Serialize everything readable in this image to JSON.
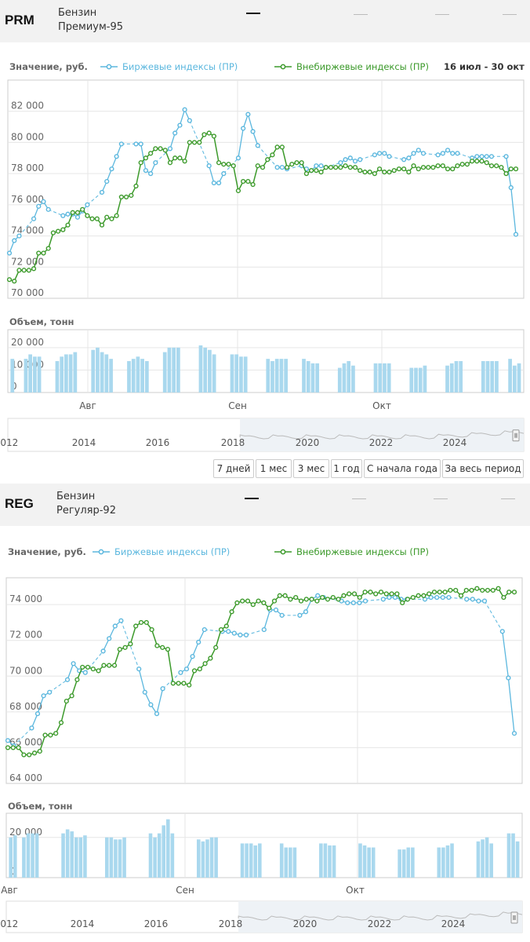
{
  "products": [
    {
      "code": "PRM",
      "name_line1": "Бензин",
      "name_line2": "Премиум-95",
      "value_title": "Значение, руб.",
      "legend_exchange": "Биржевые индексы (ПР)",
      "legend_otc": "Внебиржевые индексы (ПР)",
      "date_range": "16 июл - 30 окт",
      "volume_title": "Объем, тонн"
    },
    {
      "code": "REG",
      "name_line1": "Бензин",
      "name_line2": "Регуляр-92",
      "value_title": "Значение, руб.",
      "legend_exchange": "Биржевые индексы (ПР)",
      "legend_otc": "Внебиржевые индексы (ПР)",
      "volume_title": "Объем, тонн"
    }
  ],
  "range_buttons": [
    "7 дней",
    "1 мес",
    "3 мес",
    "1 год",
    "С начала года",
    "За весь период"
  ],
  "colors": {
    "exchange": "#5bb7de",
    "otc": "#3c9a2b",
    "volume": "#a9d8ee",
    "header_bg": "#f2f2f2"
  },
  "chart_data": [
    {
      "type": "line",
      "title": "Значение, руб.",
      "date_range": "16 июл - 30 окт",
      "ylim": [
        70000,
        84000
      ],
      "yticks": [
        "70 000",
        "72 000",
        "74 000",
        "76 000",
        "78 000",
        "80 000",
        "82 000"
      ],
      "xticks": [
        "Авг",
        "Сен",
        "Окт"
      ],
      "series": [
        {
          "name": "Биржевые индексы (ПР)",
          "values": [
            72900,
            73700,
            74000,
            null,
            null,
            75100,
            75900,
            76200,
            75700,
            null,
            null,
            75300,
            75400,
            75400,
            75200,
            75600,
            76000,
            null,
            null,
            76800,
            77500,
            78300,
            79100,
            79900,
            null,
            null,
            79900,
            79900,
            78200,
            78000,
            78700,
            null,
            null,
            79600,
            80600,
            81100,
            82100,
            81400,
            null,
            null,
            null,
            78500,
            77400,
            77400,
            78000,
            null,
            null,
            79000,
            80900,
            81800,
            80700,
            79800,
            null,
            null,
            null,
            78400,
            78400,
            78300,
            null,
            null,
            78500,
            78300,
            78200,
            78500,
            78500,
            78400,
            null,
            null,
            78700,
            78900,
            79000,
            78800,
            78900,
            null,
            null,
            79200,
            79300,
            79300,
            79100,
            null,
            null,
            78900,
            79000,
            79300,
            79500,
            79300,
            null,
            null,
            79200,
            79300,
            79500,
            79300,
            79300,
            null,
            null,
            79000,
            79100,
            79100,
            79100,
            79100,
            null,
            null,
            79100,
            77100,
            74100
          ]
        },
        {
          "name": "Внебиржевые индексы (ПР)",
          "values": [
            71200,
            71100,
            71800,
            71800,
            71800,
            71900,
            72900,
            72900,
            73200,
            74200,
            74300,
            74400,
            74700,
            75500,
            75500,
            75700,
            75300,
            75100,
            75100,
            74700,
            75200,
            75100,
            75300,
            76500,
            76500,
            76600,
            77200,
            78700,
            79000,
            79300,
            79600,
            79600,
            79500,
            78700,
            79000,
            79000,
            78800,
            80000,
            80000,
            80000,
            80500,
            80600,
            80400,
            78700,
            78600,
            78600,
            78500,
            76900,
            77500,
            77500,
            77300,
            78500,
            78400,
            78900,
            79200,
            79700,
            79700,
            78400,
            78600,
            78700,
            78700,
            78000,
            78200,
            78200,
            78100,
            78400,
            78400,
            78400,
            78400,
            78500,
            78400,
            78400,
            78200,
            78100,
            78100,
            78000,
            78300,
            78100,
            78100,
            78200,
            78300,
            78300,
            78100,
            78500,
            78300,
            78400,
            78400,
            78400,
            78500,
            78500,
            78300,
            78300,
            78500,
            78600,
            78600,
            78800,
            78800,
            78800,
            78700,
            78500,
            78500,
            78400,
            78000,
            78300,
            78300
          ]
        }
      ],
      "volume": {
        "title": "Объем, тонн",
        "ylim": [
          0,
          28000
        ],
        "yticks": [
          "0",
          "10 000",
          "20 000"
        ],
        "values": [
          15000,
          null,
          null,
          15000,
          17000,
          16000,
          16000,
          null,
          null,
          null,
          14000,
          16000,
          17000,
          17000,
          18000,
          null,
          null,
          null,
          19000,
          20000,
          18000,
          17000,
          15000,
          null,
          null,
          null,
          14000,
          15000,
          16000,
          15000,
          14000,
          null,
          null,
          null,
          18000,
          20000,
          20000,
          20000,
          null,
          null,
          null,
          null,
          21000,
          20000,
          19000,
          17000,
          null,
          null,
          null,
          17000,
          17000,
          16000,
          16000,
          null,
          null,
          null,
          null,
          15000,
          14000,
          15000,
          15000,
          15000,
          null,
          null,
          null,
          15000,
          14000,
          13000,
          13000,
          null,
          null,
          null,
          null,
          11000,
          13000,
          14000,
          12000,
          null,
          null,
          null,
          null,
          13000,
          13000,
          13000,
          13000,
          null,
          null,
          null,
          null,
          11000,
          11000,
          11000,
          12000,
          null,
          null,
          null,
          null,
          12000,
          13000,
          14000,
          14000,
          null,
          null,
          null,
          null,
          14000,
          14000,
          14000,
          14000,
          null,
          null,
          15000,
          12000,
          13000
        ]
      },
      "navigator": [
        "2012",
        "2014",
        "2016",
        "2018",
        "2020",
        "2022",
        "2024"
      ]
    },
    {
      "type": "line",
      "title": "Значение, руб.",
      "ylim": [
        64000,
        75500
      ],
      "yticks": [
        "64 000",
        "66 000",
        "68 000",
        "70 000",
        "72 000",
        "74 000"
      ],
      "xticks": [
        "Авг",
        "Сен",
        "Окт"
      ],
      "series": [
        {
          "name": "Биржевые индексы (ПР)",
          "values": [
            66400,
            66100,
            null,
            null,
            67100,
            67900,
            68900,
            69100,
            null,
            null,
            69800,
            70700,
            70300,
            70200,
            null,
            null,
            71400,
            72100,
            72800,
            73100,
            null,
            null,
            70400,
            69100,
            68400,
            67900,
            69300,
            null,
            null,
            70200,
            70400,
            71100,
            71900,
            72600,
            null,
            null,
            72500,
            72500,
            72400,
            72300,
            72300,
            null,
            null,
            72600,
            73700,
            73700,
            73400,
            null,
            null,
            73400,
            73600,
            74300,
            74500,
            74400,
            null,
            null,
            74200,
            74100,
            74100,
            74100,
            74200,
            null,
            null,
            74300,
            74400,
            74400,
            74300,
            74300,
            null,
            null,
            74300,
            74400,
            74400,
            74400,
            74400,
            null,
            null,
            74300,
            74300,
            74200,
            74200,
            null,
            null,
            72500,
            69900,
            66800
          ]
        },
        {
          "name": "Внебиржевые индексы (ПР)",
          "values": [
            66000,
            66000,
            66000,
            65600,
            65600,
            65700,
            65800,
            66700,
            66700,
            66800,
            67400,
            68600,
            68900,
            69800,
            70500,
            70500,
            70400,
            70300,
            70600,
            70600,
            70600,
            71500,
            71600,
            71800,
            72800,
            73000,
            73000,
            72600,
            71700,
            71600,
            71500,
            69600,
            69600,
            69600,
            69500,
            70300,
            70400,
            70700,
            71000,
            71600,
            72600,
            72800,
            73600,
            74100,
            74200,
            74200,
            74000,
            74200,
            74100,
            73800,
            74200,
            74500,
            74500,
            74300,
            74400,
            74200,
            74300,
            74300,
            74200,
            74400,
            74300,
            74400,
            74300,
            74500,
            74600,
            74600,
            74400,
            74700,
            74700,
            74600,
            74700,
            74600,
            74600,
            74600,
            74100,
            74300,
            74400,
            74500,
            74500,
            74600,
            74700,
            74700,
            74700,
            74800,
            74800,
            74500,
            74800,
            74800,
            74900,
            74800,
            74800,
            74800,
            74900,
            74400,
            74700,
            74700
          ]
        }
      ],
      "volume": {
        "title": "Объем, тонн",
        "ylim": [
          0,
          32000
        ],
        "yticks": [
          "0",
          "20 000"
        ],
        "values": [
          20000,
          21000,
          null,
          20000,
          22000,
          22000,
          22000,
          null,
          null,
          null,
          null,
          null,
          22000,
          24000,
          23000,
          20000,
          20000,
          21000,
          null,
          null,
          null,
          null,
          20000,
          20000,
          19000,
          19000,
          20000,
          null,
          null,
          null,
          null,
          null,
          22000,
          20000,
          22000,
          26000,
          29000,
          22000,
          null,
          null,
          null,
          null,
          null,
          19000,
          18000,
          19000,
          20000,
          20000,
          null,
          null,
          null,
          null,
          null,
          17000,
          17000,
          17000,
          16000,
          17000,
          null,
          null,
          null,
          null,
          17000,
          15000,
          15000,
          15000,
          null,
          null,
          null,
          null,
          null,
          17000,
          17000,
          16000,
          16000,
          null,
          null,
          null,
          null,
          null,
          17000,
          16000,
          15000,
          15000,
          null,
          null,
          null,
          null,
          null,
          14000,
          14000,
          15000,
          15000,
          null,
          null,
          null,
          null,
          null,
          15000,
          15000,
          16000,
          17000,
          null,
          null,
          null,
          null,
          null,
          18000,
          19000,
          20000,
          17000,
          null,
          null,
          null,
          22000,
          22000,
          18000
        ]
      },
      "navigator": [
        "2012",
        "2014",
        "2016",
        "2018",
        "2020",
        "2022",
        "2024"
      ]
    }
  ]
}
